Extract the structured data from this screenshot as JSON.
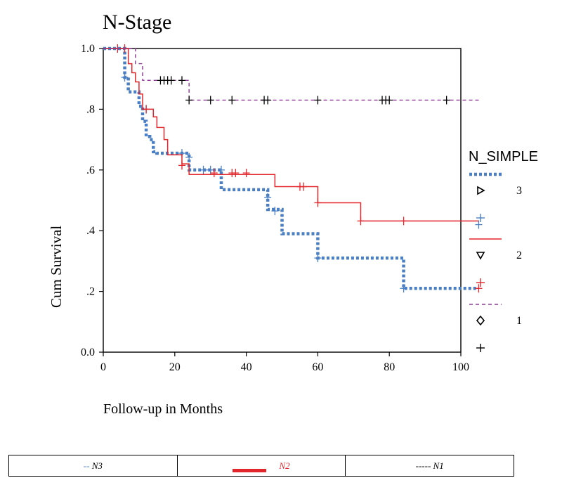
{
  "chart_data": {
    "type": "line",
    "subtype": "kaplan-meier",
    "title": "N-Stage",
    "xlabel": "Follow-up in Months",
    "ylabel": "Cum Survival",
    "xlim": [
      0,
      100
    ],
    "ylim": [
      0,
      1
    ],
    "x_ticks": [
      0,
      20,
      40,
      60,
      80,
      100
    ],
    "x_tick_labels": [
      "0",
      "20",
      "40",
      "60",
      "80",
      "100"
    ],
    "y_ticks": [
      0,
      0.2,
      0.4,
      0.6,
      0.8,
      1.0
    ],
    "y_tick_labels": [
      "0.0",
      ".2",
      ".4",
      ".6",
      ".8",
      "1.0"
    ],
    "grid": false,
    "legend_title": "N_SIMPLE",
    "legend_position": "right",
    "legend": [
      {
        "label": "3",
        "color": "#4a7fc4",
        "dash": "dotted-thick",
        "symbol": "triangle-right",
        "censor_marker": "+"
      },
      {
        "label": "2",
        "color": "#e3262b",
        "dash": "solid",
        "symbol": "triangle-down",
        "censor_marker": "+"
      },
      {
        "label": "1",
        "color": "#8e3a96",
        "dash": "dashed",
        "symbol": "diamond",
        "censor_marker": "+"
      }
    ],
    "series": [
      {
        "name": "3",
        "color": "#4a7fc4",
        "style": "dotted",
        "steps": [
          [
            0,
            1.0
          ],
          [
            6,
            0.905
          ],
          [
            7,
            0.857
          ],
          [
            10,
            0.81
          ],
          [
            11,
            0.76
          ],
          [
            12,
            0.71
          ],
          [
            13,
            0.7
          ],
          [
            14,
            0.66
          ],
          [
            15,
            0.655
          ],
          [
            24,
            0.6
          ],
          [
            33,
            0.535
          ],
          [
            46,
            0.47
          ],
          [
            50,
            0.39
          ],
          [
            60,
            0.31
          ],
          [
            84,
            0.21
          ],
          [
            105,
            0.21
          ]
        ],
        "censored": [
          [
            6,
            0.905
          ],
          [
            12,
            0.8
          ],
          [
            22,
            0.655
          ],
          [
            24,
            0.642
          ],
          [
            28,
            0.6
          ],
          [
            30,
            0.6
          ],
          [
            33,
            0.6
          ],
          [
            46,
            0.51
          ],
          [
            48,
            0.465
          ],
          [
            60,
            0.31
          ],
          [
            84,
            0.21
          ],
          [
            105,
            0.42
          ]
        ]
      },
      {
        "name": "2",
        "color": "#e3262b",
        "style": "solid",
        "steps": [
          [
            0,
            1.0
          ],
          [
            7,
            0.95
          ],
          [
            8,
            0.92
          ],
          [
            9,
            0.89
          ],
          [
            10,
            0.85
          ],
          [
            11,
            0.8
          ],
          [
            14,
            0.775
          ],
          [
            15,
            0.74
          ],
          [
            17,
            0.7
          ],
          [
            18,
            0.65
          ],
          [
            22,
            0.62
          ],
          [
            24,
            0.585
          ],
          [
            48,
            0.545
          ],
          [
            60,
            0.492
          ],
          [
            72,
            0.432
          ],
          [
            105,
            0.432
          ]
        ],
        "censored": [
          [
            4,
            1.0
          ],
          [
            6,
            1.0
          ],
          [
            12,
            0.8
          ],
          [
            22,
            0.615
          ],
          [
            31,
            0.59
          ],
          [
            36,
            0.59
          ],
          [
            37,
            0.59
          ],
          [
            40,
            0.59
          ],
          [
            55,
            0.545
          ],
          [
            56,
            0.545
          ],
          [
            60,
            0.492
          ],
          [
            72,
            0.432
          ],
          [
            84,
            0.432
          ],
          [
            105,
            0.21
          ]
        ]
      },
      {
        "name": "1",
        "color": "#8e3a96",
        "style": "dashed",
        "steps": [
          [
            0,
            1.0
          ],
          [
            7,
            1.0
          ],
          [
            9,
            0.95
          ],
          [
            11,
            0.895
          ],
          [
            24,
            0.83
          ],
          [
            105,
            0.83
          ]
        ],
        "censored": [
          [
            16,
            0.895
          ],
          [
            17,
            0.895
          ],
          [
            18,
            0.895
          ],
          [
            19,
            0.895
          ],
          [
            22,
            0.895
          ],
          [
            24,
            0.83
          ],
          [
            30,
            0.83
          ],
          [
            36,
            0.83
          ],
          [
            45,
            0.83
          ],
          [
            46,
            0.83
          ],
          [
            60,
            0.83
          ],
          [
            78,
            0.83
          ],
          [
            79,
            0.83
          ],
          [
            80,
            0.83
          ],
          [
            96,
            0.83
          ]
        ]
      }
    ]
  },
  "bottom_legend": {
    "items": [
      {
        "label": "N3",
        "prefix": "-- ",
        "color": "#4a7fc4"
      },
      {
        "label": "N2",
        "prefix": "",
        "color": "#e3262b"
      },
      {
        "label": "N1",
        "prefix": "----- ",
        "color": "#000000"
      }
    ]
  }
}
